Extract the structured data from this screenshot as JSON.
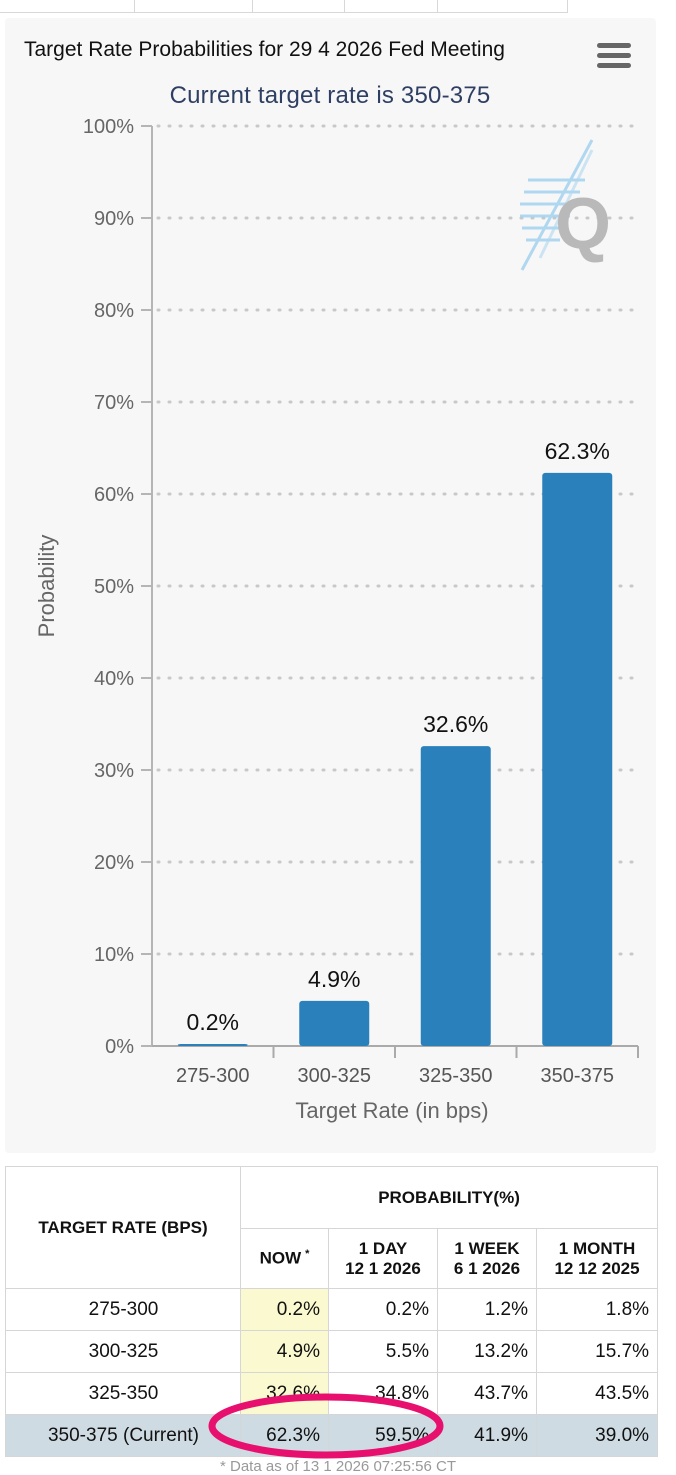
{
  "colors": {
    "bar": "#2a80bb",
    "highlight": "#e8106e",
    "now_column": "#fbf9cf",
    "current_row": "#cfdbe2"
  },
  "chart": {
    "menu_icon": "hamburger-menu-icon",
    "watermark_icon": "quikstrike-q-logo-icon"
  },
  "chart_data": {
    "type": "bar",
    "title": "Target Rate Probabilities for 29 4 2026 Fed Meeting",
    "subtitle": "Current target rate is 350-375",
    "xlabel": "Target Rate (in bps)",
    "ylabel": "Probability",
    "categories": [
      "275-300",
      "300-325",
      "325-350",
      "350-375"
    ],
    "values": [
      0.2,
      4.9,
      32.6,
      62.3
    ],
    "data_labels": [
      "0.2%",
      "4.9%",
      "32.6%",
      "62.3%"
    ],
    "ylim": [
      0,
      100
    ],
    "yticks": [
      "0%",
      "10%",
      "20%",
      "30%",
      "40%",
      "50%",
      "60%",
      "70%",
      "80%",
      "90%",
      "100%"
    ],
    "grid": "dotted horizontal"
  },
  "table": {
    "header_rate": "TARGET RATE (BPS)",
    "header_probability": "PROBABILITY(%)",
    "columns": [
      {
        "line1": "NOW",
        "line2": "",
        "mark": "*"
      },
      {
        "line1": "1 DAY",
        "line2": "12 1 2026"
      },
      {
        "line1": "1 WEEK",
        "line2": "6 1 2026"
      },
      {
        "line1": "1 MONTH",
        "line2": "12 12 2025"
      }
    ],
    "rows": [
      {
        "rate": "275-300",
        "values": [
          "0.2%",
          "0.2%",
          "1.2%",
          "1.8%"
        ]
      },
      {
        "rate": "300-325",
        "values": [
          "4.9%",
          "5.5%",
          "13.2%",
          "15.7%"
        ]
      },
      {
        "rate": "325-350",
        "values": [
          "32.6%",
          "34.8%",
          "43.7%",
          "43.5%"
        ]
      },
      {
        "rate": "350-375 (Current)",
        "values": [
          "62.3%",
          "59.5%",
          "41.9%",
          "39.0%"
        ]
      }
    ]
  },
  "footnote": "* Data as of 13 1 2026 07:25:56 CT"
}
